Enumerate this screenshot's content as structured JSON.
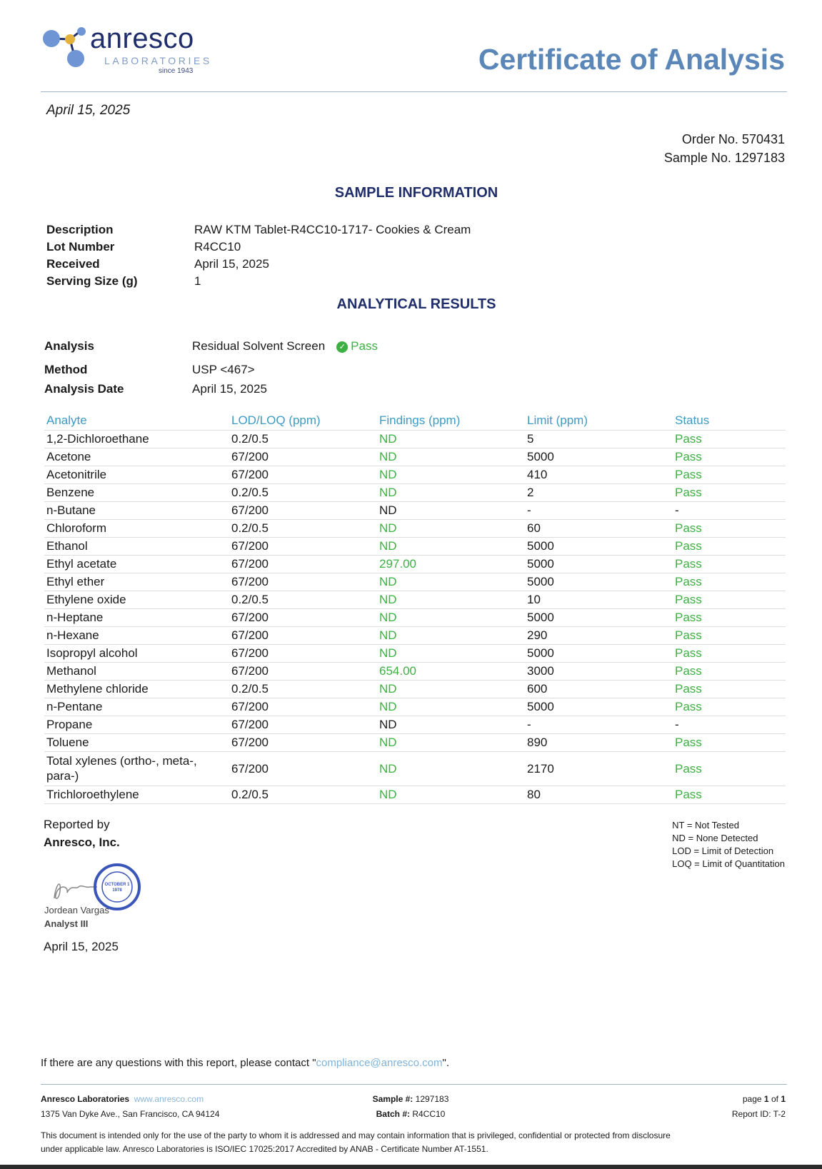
{
  "logo": {
    "word": "anresco",
    "sub": "LABORATORIES",
    "since": "since 1943"
  },
  "title": "Certificate of Analysis",
  "date": "April 15, 2025",
  "order_no": "Order No. 570431",
  "sample_no": "Sample No. 1297183",
  "sample_info": {
    "heading": "SAMPLE INFORMATION",
    "rows": [
      {
        "label": "Description",
        "value": "RAW KTM Tablet-R4CC10-1717- Cookies & Cream"
      },
      {
        "label": "Lot Number",
        "value": "R4CC10"
      },
      {
        "label": "Received",
        "value": "April 15, 2025"
      },
      {
        "label": "Serving Size (g)",
        "value": "1"
      }
    ]
  },
  "analytical": {
    "heading": "ANALYTICAL RESULTS",
    "analysis_label": "Analysis",
    "analysis_value": "Residual Solvent Screen",
    "analysis_status": "Pass",
    "method_label": "Method",
    "method_value": "USP <467>",
    "date_label": "Analysis Date",
    "date_value": "April 15, 2025"
  },
  "table": {
    "headers": [
      "Analyte",
      "LOD/LOQ (ppm)",
      "Findings (ppm)",
      "Limit (ppm)",
      "Status"
    ],
    "rows": [
      [
        "1,2-Dichloroethane",
        "0.2/0.5",
        "ND",
        "5",
        "Pass"
      ],
      [
        "Acetone",
        "67/200",
        "ND",
        "5000",
        "Pass"
      ],
      [
        "Acetonitrile",
        "67/200",
        "ND",
        "410",
        "Pass"
      ],
      [
        "Benzene",
        "0.2/0.5",
        "ND",
        "2",
        "Pass"
      ],
      [
        "n-Butane",
        "67/200",
        "ND",
        "-",
        "-"
      ],
      [
        "Chloroform",
        "0.2/0.5",
        "ND",
        "60",
        "Pass"
      ],
      [
        "Ethanol",
        "67/200",
        "ND",
        "5000",
        "Pass"
      ],
      [
        "Ethyl acetate",
        "67/200",
        "297.00",
        "5000",
        "Pass"
      ],
      [
        "Ethyl ether",
        "67/200",
        "ND",
        "5000",
        "Pass"
      ],
      [
        "Ethylene oxide",
        "0.2/0.5",
        "ND",
        "10",
        "Pass"
      ],
      [
        "n-Heptane",
        "67/200",
        "ND",
        "5000",
        "Pass"
      ],
      [
        "n-Hexane",
        "67/200",
        "ND",
        "290",
        "Pass"
      ],
      [
        "Isopropyl alcohol",
        "67/200",
        "ND",
        "5000",
        "Pass"
      ],
      [
        "Methanol",
        "67/200",
        "654.00",
        "3000",
        "Pass"
      ],
      [
        "Methylene chloride",
        "0.2/0.5",
        "ND",
        "600",
        "Pass"
      ],
      [
        "n-Pentane",
        "67/200",
        "ND",
        "5000",
        "Pass"
      ],
      [
        "Propane",
        "67/200",
        "ND",
        "-",
        "-"
      ],
      [
        "Toluene",
        "67/200",
        "ND",
        "890",
        "Pass"
      ],
      [
        "Total xylenes (ortho-, meta-, para-)",
        "67/200",
        "ND",
        "2170",
        "Pass"
      ],
      [
        "Trichloroethylene",
        "0.2/0.5",
        "ND",
        "80",
        "Pass"
      ]
    ]
  },
  "reported_by": "Reported by",
  "company": "Anresco, Inc.",
  "signer": {
    "name": "Jordean Vargas",
    "role": "Analyst III",
    "date": "April 15, 2025",
    "signature": "JVargas",
    "seal": "ANRESCO INCORPORATED OCTOBER 1 1978 CALIFORNIA"
  },
  "legend": [
    "NT = Not Tested",
    "ND = None Detected",
    "LOD = Limit of Detection",
    "LOQ = Limit of Quantitation"
  ],
  "contact": {
    "prefix": "If there are any questions with this report, please contact \"",
    "email": "compliance@anresco.com",
    "suffix": "\"."
  },
  "footer": {
    "company": "Anresco Laboratories",
    "website": "www.anresco.com",
    "address": "1375 Van Dyke Ave., San Francisco, CA 94124",
    "sample_label": "Sample #:",
    "sample_value": "1297183",
    "batch_label": "Batch #:",
    "batch_value": "R4CC10",
    "page_prefix": "page",
    "page_num": "1",
    "page_of": "of",
    "page_total": "1",
    "report_id": "Report ID: T-2",
    "disclaimer1": "This document is intended only for the use of the party to whom it is addressed and may contain information that is privileged, confidential or protected from disclosure",
    "disclaimer2": "under applicable law. Anresco Laboratories is ISO/IEC 17025:2017 Accredited by ANAB - Certificate Number AT-1551."
  },
  "colors": {
    "title": "#5b86b8",
    "heading": "#1f2d6b",
    "table_header": "#3d9bc3",
    "pass": "#3cb043"
  }
}
